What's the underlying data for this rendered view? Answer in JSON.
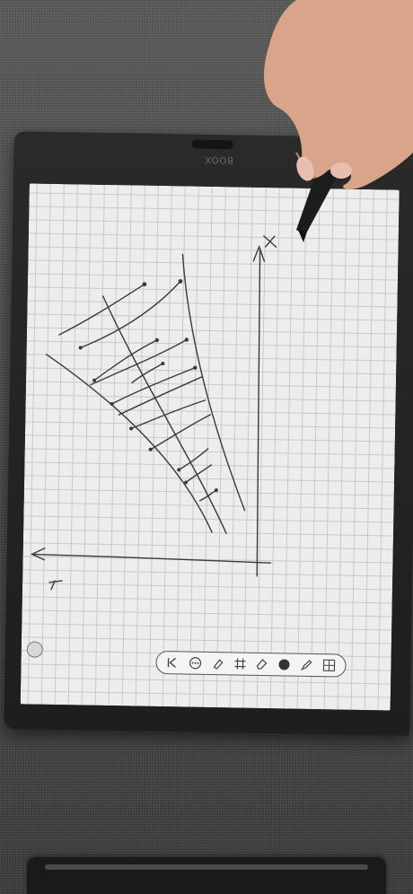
{
  "device": {
    "brand_label": "BOOX"
  },
  "toolbar": {
    "tools": [
      {
        "name": "collapse-icon",
        "glyph": "◁"
      },
      {
        "name": "more-icon",
        "glyph": "⋯"
      },
      {
        "name": "lasso-icon",
        "glyph": "✎"
      },
      {
        "name": "shape-icon",
        "glyph": "⌗"
      },
      {
        "name": "eraser-icon",
        "glyph": "⌫"
      },
      {
        "name": "color-dot-icon",
        "glyph": "●"
      },
      {
        "name": "pen-icon",
        "glyph": "✐"
      },
      {
        "name": "layers-icon",
        "glyph": "▦"
      }
    ]
  },
  "colors": {
    "ink": "#3a3a3a",
    "screen": "#ededed",
    "grid": "#c9c9c9",
    "bezel": "#222222"
  }
}
